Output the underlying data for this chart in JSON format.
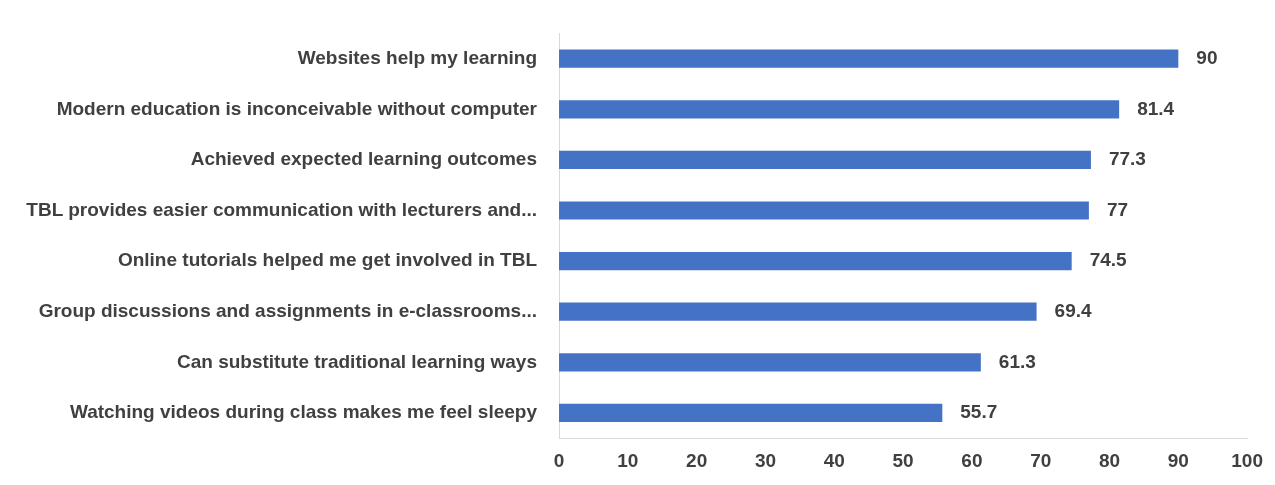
{
  "chart_data": {
    "type": "bar",
    "orientation": "horizontal",
    "categories": [
      "Websites help my learning",
      "Modern education is inconceivable without computer",
      "Achieved expected learning outcomes",
      "TBL provides easier communication with lecturers and...",
      "Online tutorials helped me get involved in TBL",
      "Group discussions and assignments in e-classrooms...",
      "Can substitute traditional learning ways",
      "Watching videos during class makes me feel sleepy"
    ],
    "values": [
      90,
      81.4,
      77.3,
      77,
      74.5,
      69.4,
      61.3,
      55.7
    ],
    "color": "#4472c4",
    "xlim": [
      0,
      100
    ],
    "xticks": [
      0,
      10,
      20,
      30,
      40,
      50,
      60,
      70,
      80,
      90,
      100
    ],
    "grid": false,
    "legend": false,
    "data_labels": true
  }
}
